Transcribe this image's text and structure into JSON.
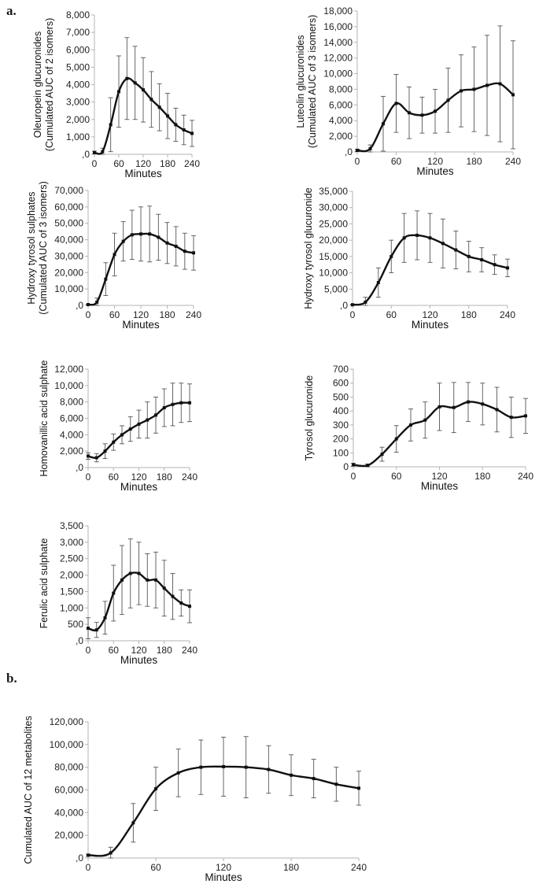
{
  "panel_labels": {
    "a": "a.",
    "b": "b."
  },
  "chart_data": [
    {
      "type": "line",
      "ylabel": [
        "Oleuropein glucuronides",
        "(Cumulated AUC of 2 isomers)"
      ],
      "xlabel": "Minutes",
      "x": [
        0,
        20,
        40,
        60,
        80,
        100,
        120,
        140,
        160,
        180,
        200,
        220,
        240
      ],
      "values": [
        100,
        150,
        1700,
        3600,
        4350,
        4100,
        3700,
        3150,
        2700,
        2200,
        1700,
        1400,
        1200
      ],
      "errors": [
        80,
        200,
        1550,
        2050,
        2350,
        2100,
        1850,
        1600,
        1350,
        1300,
        950,
        850,
        750
      ],
      "ylim": [
        0,
        8000
      ],
      "yticks": [
        0,
        1000,
        2000,
        3000,
        4000,
        5000,
        6000,
        7000,
        8000
      ],
      "ytick_labels": [
        ",0",
        "1,000",
        "2,000",
        "3,000",
        "4,000",
        "5,000",
        "6,000",
        "7,000",
        "8,000"
      ],
      "xlim": [
        0,
        240
      ],
      "xticks": [
        0,
        60,
        120,
        180,
        240
      ],
      "xtick_labels": [
        "0",
        "60",
        "120",
        "180",
        "240"
      ]
    },
    {
      "type": "line",
      "ylabel": [
        "Luteolin glucuronides",
        "(Cumulated AUC of 3 isomers)"
      ],
      "xlabel": "Minutes",
      "x": [
        0,
        20,
        40,
        60,
        80,
        100,
        120,
        140,
        160,
        180,
        200,
        220,
        240
      ],
      "values": [
        200,
        400,
        3600,
        6200,
        5000,
        4700,
        5200,
        6600,
        7800,
        8000,
        8500,
        8700,
        7300
      ],
      "errors": [
        150,
        500,
        3500,
        3700,
        3300,
        2300,
        2800,
        4100,
        4600,
        5400,
        6400,
        7400,
        6900
      ],
      "ylim": [
        0,
        18000
      ],
      "yticks": [
        0,
        2000,
        4000,
        6000,
        8000,
        10000,
        12000,
        14000,
        16000,
        18000
      ],
      "ytick_labels": [
        ",0",
        "2,000",
        "4,000",
        "6,000",
        "8,000",
        "10,000",
        "12,000",
        "14,000",
        "16,000",
        "18,000"
      ],
      "xlim": [
        0,
        240
      ],
      "xticks": [
        0,
        60,
        120,
        180,
        240
      ],
      "xtick_labels": [
        "0",
        "60",
        "120",
        "180",
        "240"
      ]
    },
    {
      "type": "line",
      "ylabel": [
        "Hydroxy tyrosol sulphates",
        "(Cumulated AUC of 3 isomers)"
      ],
      "xlabel": "Minutes",
      "x": [
        0,
        20,
        40,
        60,
        80,
        100,
        120,
        140,
        160,
        180,
        200,
        220,
        240
      ],
      "values": [
        500,
        2000,
        16000,
        31000,
        39000,
        43000,
        43500,
        43500,
        41500,
        38000,
        36000,
        33000,
        32000
      ],
      "errors": [
        300,
        2500,
        10000,
        13000,
        12000,
        15000,
        16500,
        17000,
        14000,
        12500,
        12000,
        11000,
        10500
      ],
      "ylim": [
        0,
        70000
      ],
      "yticks": [
        0,
        10000,
        20000,
        30000,
        40000,
        50000,
        60000,
        70000
      ],
      "ytick_labels": [
        ",0",
        "10,000",
        "20,000",
        "30,000",
        "40,000",
        "50,000",
        "60,000",
        "70,000"
      ],
      "xlim": [
        0,
        240
      ],
      "xticks": [
        0,
        60,
        120,
        180,
        240
      ],
      "xtick_labels": [
        "0",
        "60",
        "120",
        "180",
        "240"
      ]
    },
    {
      "type": "line",
      "ylabel": [
        "Hydroxy tyrosol glucuronide"
      ],
      "xlabel": "Minutes",
      "x": [
        0,
        20,
        40,
        60,
        80,
        100,
        120,
        140,
        160,
        180,
        200,
        220,
        240
      ],
      "values": [
        200,
        1000,
        7000,
        15000,
        20700,
        21500,
        20700,
        19000,
        17000,
        15000,
        14000,
        12500,
        11500
      ],
      "errors": [
        150,
        1500,
        4500,
        5000,
        7500,
        7500,
        7500,
        7500,
        5800,
        4700,
        3700,
        3000,
        2700
      ],
      "ylim": [
        0,
        35000
      ],
      "yticks": [
        0,
        5000,
        10000,
        15000,
        20000,
        25000,
        30000,
        35000
      ],
      "ytick_labels": [
        ",0",
        "5,000",
        "10,000",
        "15,000",
        "20,000",
        "25,000",
        "30,000",
        "35,000"
      ],
      "xlim": [
        0,
        240
      ],
      "xticks": [
        0,
        60,
        120,
        180,
        240
      ],
      "xtick_labels": [
        "0",
        "60",
        "120",
        "180",
        "240"
      ]
    },
    {
      "type": "line",
      "ylabel": [
        "Homovanillic acid sulphate"
      ],
      "xlabel": "Minutes",
      "x": [
        0,
        20,
        40,
        60,
        80,
        100,
        120,
        140,
        160,
        180,
        200,
        220,
        240
      ],
      "values": [
        1400,
        1200,
        2000,
        3100,
        4000,
        4700,
        5300,
        5800,
        6400,
        7300,
        7700,
        7900,
        7900
      ],
      "errors": [
        400,
        500,
        900,
        1000,
        1100,
        1500,
        1700,
        2200,
        2200,
        2300,
        2600,
        2400,
        2300
      ],
      "ylim": [
        0,
        12000
      ],
      "yticks": [
        0,
        2000,
        4000,
        6000,
        8000,
        10000,
        12000
      ],
      "ytick_labels": [
        ",0",
        "2,000",
        "4,000",
        "6,000",
        "8,000",
        "10,000",
        "12,000"
      ],
      "xlim": [
        0,
        240
      ],
      "xticks": [
        0,
        60,
        120,
        180,
        240
      ],
      "xtick_labels": [
        "0",
        "60",
        "120",
        "180",
        "240"
      ]
    },
    {
      "type": "line",
      "ylabel": [
        "Tyrosol glucuronide"
      ],
      "xlabel": "Minutes",
      "x": [
        0,
        20,
        40,
        60,
        80,
        100,
        120,
        140,
        160,
        180,
        200,
        220,
        240
      ],
      "values": [
        15,
        10,
        90,
        200,
        300,
        335,
        430,
        425,
        465,
        450,
        410,
        355,
        365
      ],
      "errors": [
        10,
        10,
        50,
        95,
        115,
        130,
        170,
        180,
        140,
        150,
        160,
        145,
        125
      ],
      "ylim": [
        0,
        700
      ],
      "yticks": [
        0,
        100,
        200,
        300,
        400,
        500,
        600,
        700
      ],
      "ytick_labels": [
        "0",
        "100",
        "200",
        "300",
        "400",
        "500",
        "600",
        "700"
      ],
      "xlim": [
        0,
        240
      ],
      "xticks": [
        0,
        60,
        120,
        180,
        240
      ],
      "xtick_labels": [
        "0",
        "60",
        "120",
        "180",
        "240"
      ]
    },
    {
      "type": "line",
      "ylabel": [
        "Ferulic acid sulphate"
      ],
      "xlabel": "Minutes",
      "x": [
        0,
        20,
        40,
        60,
        80,
        100,
        120,
        140,
        160,
        180,
        200,
        220,
        240
      ],
      "values": [
        380,
        330,
        700,
        1450,
        1850,
        2050,
        2050,
        1850,
        1850,
        1600,
        1350,
        1150,
        1050
      ],
      "errors": [
        320,
        230,
        500,
        850,
        1050,
        1050,
        950,
        800,
        850,
        850,
        700,
        400,
        500
      ],
      "ylim": [
        0,
        3500
      ],
      "yticks": [
        0,
        500,
        1000,
        1500,
        2000,
        2500,
        3000,
        3500
      ],
      "ytick_labels": [
        ",0",
        "500",
        "1,000",
        "1,500",
        "2,000",
        "2,500",
        "3,000",
        "3,500"
      ],
      "xlim": [
        0,
        240
      ],
      "xticks": [
        0,
        60,
        120,
        180,
        240
      ],
      "xtick_labels": [
        "0",
        "60",
        "120",
        "180",
        "240"
      ]
    },
    {
      "type": "line",
      "ylabel": [
        "Cumulated AUC of 12 metabolites"
      ],
      "xlabel": "Minutes",
      "x": [
        0,
        20,
        40,
        60,
        80,
        100,
        120,
        140,
        160,
        180,
        200,
        220,
        240
      ],
      "values": [
        2500,
        4500,
        31000,
        61000,
        75000,
        80000,
        80500,
        80000,
        78000,
        73000,
        70000,
        65000,
        61500
      ],
      "errors": [
        1000,
        5000,
        17000,
        19000,
        21000,
        24000,
        26000,
        27000,
        21000,
        18000,
        17000,
        15000,
        15000
      ],
      "ylim": [
        0,
        120000
      ],
      "yticks": [
        0,
        20000,
        40000,
        60000,
        80000,
        100000,
        120000
      ],
      "ytick_labels": [
        ",0",
        "20,000",
        "40,000",
        "60,000",
        "80,000",
        "100,000",
        "120,000"
      ],
      "xlim": [
        0,
        240
      ],
      "xticks": [
        0,
        60,
        120,
        180,
        240
      ],
      "xtick_labels": [
        "0",
        "60",
        "120",
        "180",
        "240"
      ]
    }
  ]
}
